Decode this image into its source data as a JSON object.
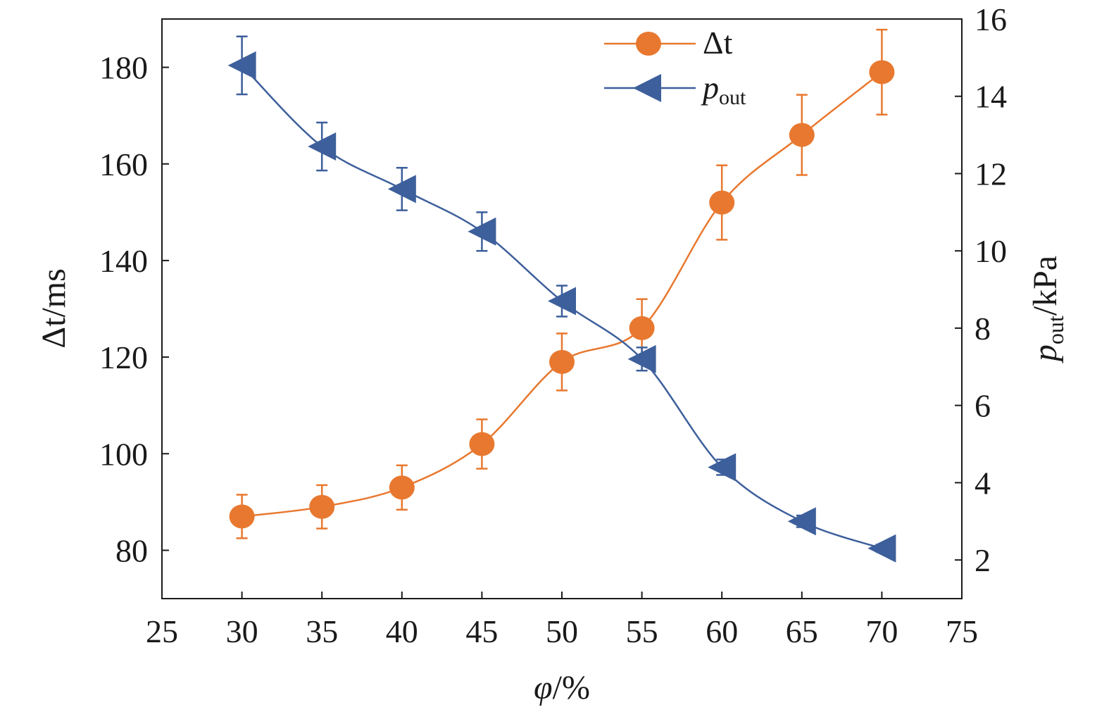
{
  "chart_data": {
    "type": "line",
    "x_label": {
      "symbol": "φ",
      "unit": "/%"
    },
    "y_left_label": {
      "symbol": "Δt",
      "unit": "/ms"
    },
    "y_right_label": {
      "symbol": "p",
      "subscript": "out",
      "unit": "/kPa"
    },
    "x_ticks": [
      25,
      30,
      35,
      40,
      45,
      50,
      55,
      60,
      65,
      70,
      75
    ],
    "x_range": [
      25,
      75
    ],
    "y_left_ticks": [
      80,
      100,
      120,
      140,
      160,
      180
    ],
    "y_left_range": [
      70,
      190
    ],
    "y_right_ticks": [
      2,
      4,
      6,
      8,
      10,
      12,
      14,
      16
    ],
    "y_right_range": [
      1,
      16
    ],
    "grid": false,
    "legend_position": "top-right",
    "series": [
      {
        "name": "Δt",
        "legend": {
          "symbol": "Δt",
          "subscript": ""
        },
        "axis": "left",
        "marker": "circle",
        "color": "#E8782F",
        "x": [
          30,
          35,
          40,
          45,
          50,
          55,
          60,
          65,
          70
        ],
        "y": [
          87,
          89,
          93,
          102,
          119,
          126,
          152,
          166,
          179
        ],
        "err": [
          4.5,
          4.5,
          4.6,
          5.1,
          5.9,
          6.0,
          7.7,
          8.3,
          8.8
        ]
      },
      {
        "name": "pout",
        "legend": {
          "symbol": "p",
          "subscript": "out"
        },
        "axis": "right",
        "marker": "triangle-left",
        "color": "#3D5F9B",
        "x": [
          30,
          35,
          40,
          45,
          50,
          55,
          60,
          65,
          70
        ],
        "y": [
          14.8,
          12.7,
          11.6,
          10.5,
          8.7,
          7.2,
          4.4,
          3.0,
          2.3
        ],
        "err": [
          0.75,
          0.62,
          0.55,
          0.5,
          0.4,
          0.3,
          0.2,
          0.15,
          0.1
        ]
      }
    ]
  }
}
